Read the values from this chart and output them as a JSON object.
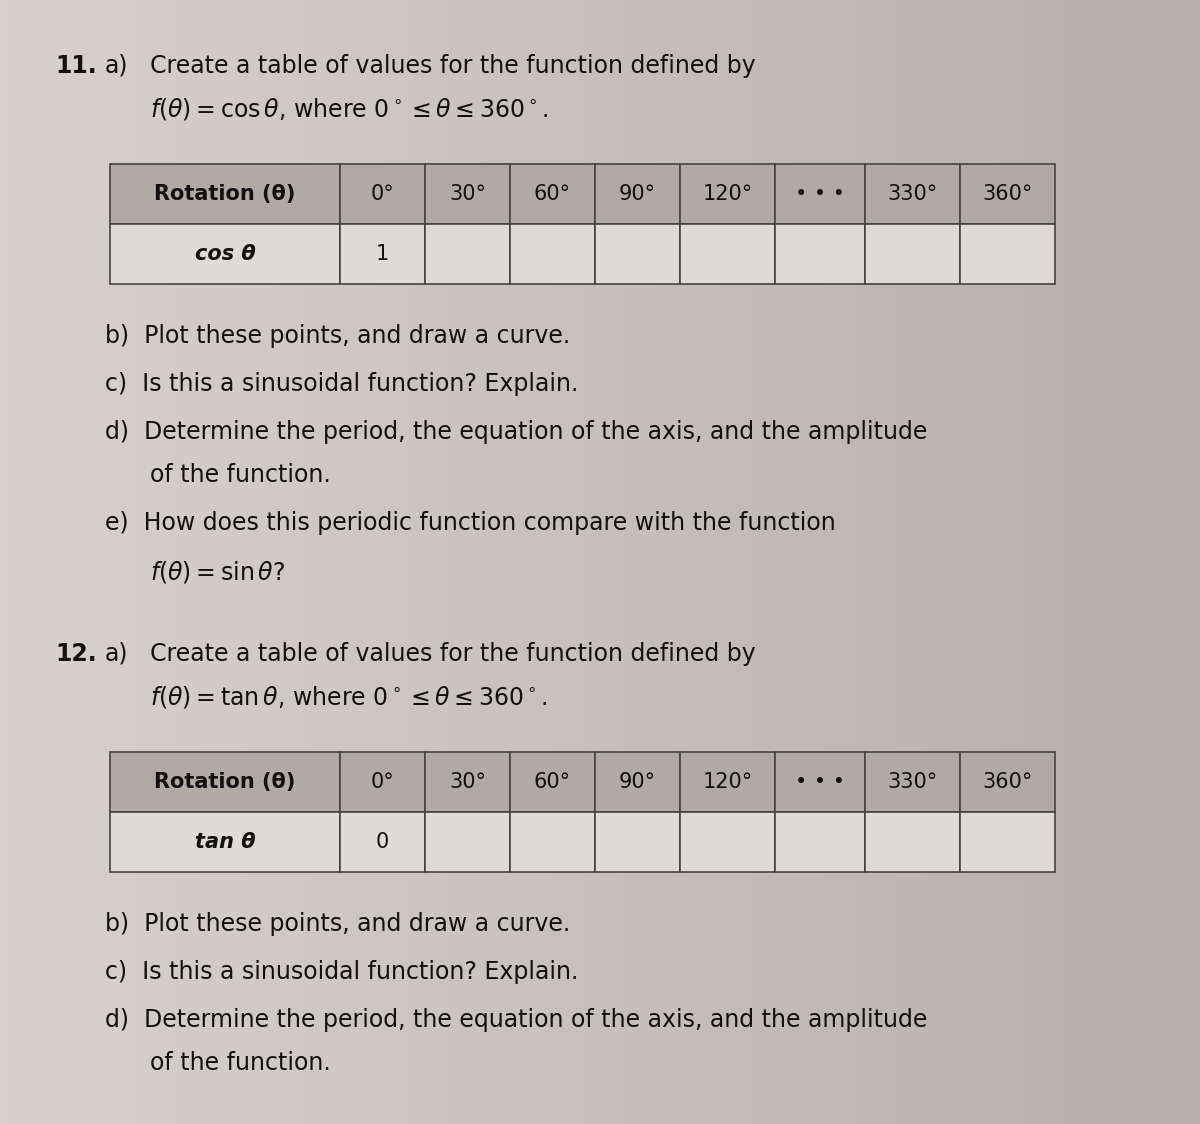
{
  "page_bg": "#c8c0b8",
  "q11_number": "11.",
  "q11_label": "a)",
  "q11_line1": "Create a table of values for the function defined by",
  "q11_table_header": [
    "Rotation (θ)",
    "0°",
    "30°",
    "60°",
    "90°",
    "120°",
    "• • •",
    "330°",
    "360°"
  ],
  "q11_table_row1_label": "cos θ",
  "q11_table_row1_value": "1",
  "q11_sub_b": "b)  Plot these points, and draw a curve.",
  "q11_sub_c": "c)  Is this a sinusoidal function? Explain.",
  "q11_sub_d1": "d)  Determine the period, the equation of the axis, and the amplitude",
  "q11_sub_d2": "of the function.",
  "q11_sub_e1": "e)  How does this periodic function compare with the function",
  "q12_number": "12.",
  "q12_label": "a)",
  "q12_line1": "Create a table of values for the function defined by",
  "q12_table_header": [
    "Rotation (θ)",
    "0°",
    "30°",
    "60°",
    "90°",
    "120°",
    "• • •",
    "330°",
    "360°"
  ],
  "q12_table_row1_label": "tan θ",
  "q12_table_row1_value": "0",
  "q12_sub_b": "b)  Plot these points, and draw a curve.",
  "q12_sub_c": "c)  Is this a sinusoidal function? Explain.",
  "q12_sub_d1": "d)  Determine the period, the equation of the axis, and the amplitude",
  "q12_sub_d2": "of the function.",
  "table_header_bg": "#b0aaa4",
  "table_row_bg": "#dedad6",
  "table_border_color": "#444444",
  "text_color": "#111111",
  "font_size_body": 17,
  "font_size_table_header": 15,
  "font_size_table_data": 15
}
